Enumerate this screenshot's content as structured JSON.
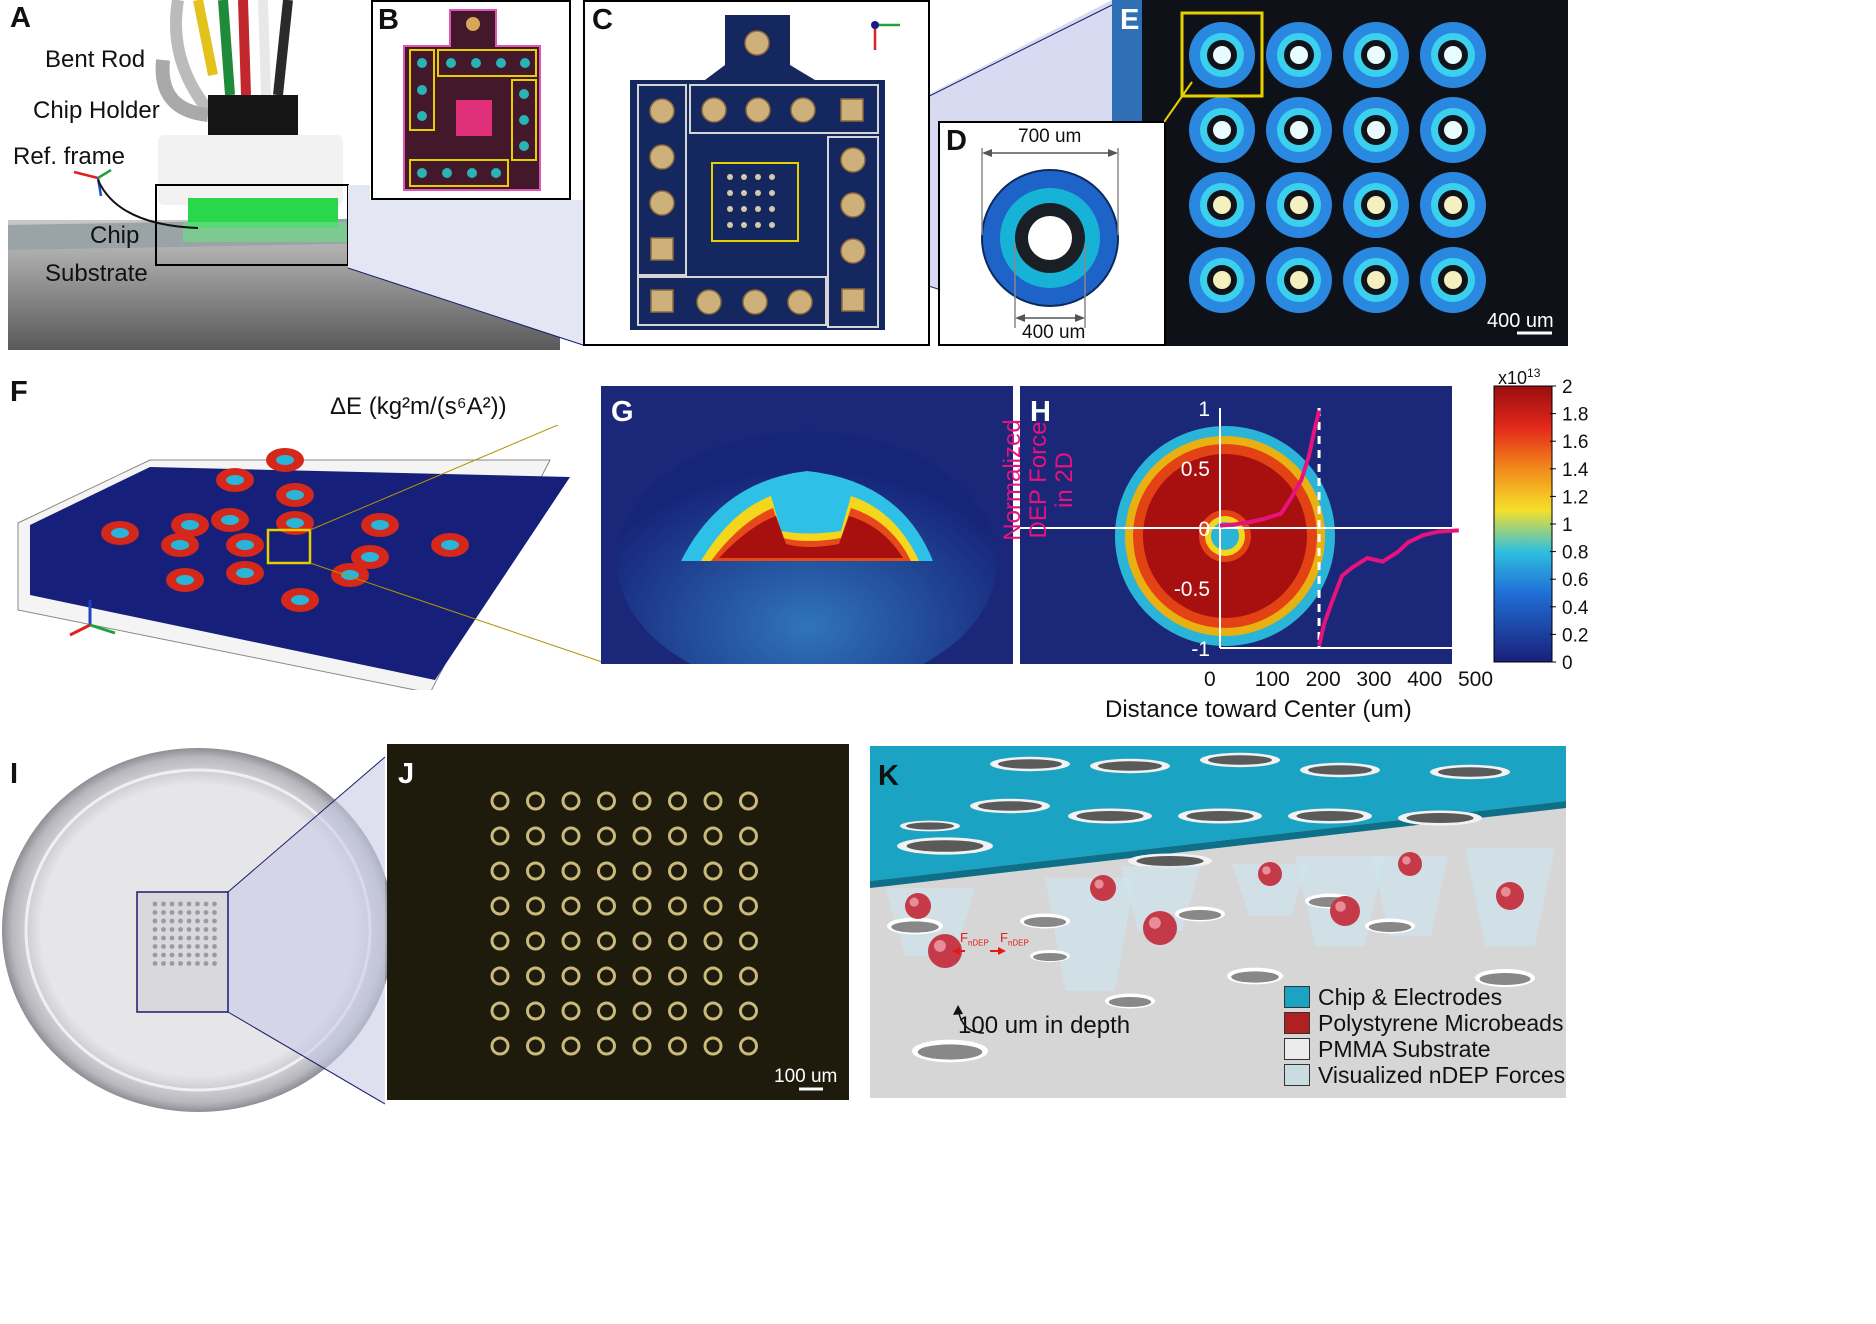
{
  "panels": {
    "A": {
      "label": "A",
      "annotations": [
        "Bent Rod",
        "Chip Holder",
        "Ref. frame",
        "Chip",
        "Substrate"
      ]
    },
    "B": {
      "label": "B"
    },
    "C": {
      "label": "C"
    },
    "D": {
      "label": "D",
      "dim_outer": "700 um",
      "dim_inner": "400 um"
    },
    "E": {
      "label": "E",
      "scalebar": "400 um"
    },
    "F": {
      "label": "F",
      "quantity": "ΔE (kg²m/(s⁶A²))"
    },
    "G": {
      "label": "G"
    },
    "H": {
      "label": "H",
      "ylabel_line1": "Normalized",
      "ylabel_line2": "DEP Force",
      "ylabel_line3": "in 2D",
      "xlabel": "Distance toward Center (um)",
      "y_ticks": [
        "1",
        "0.5",
        "0",
        "-0.5",
        "-1"
      ],
      "x_ticks": [
        "0",
        "100",
        "200",
        "300",
        "400",
        "500"
      ]
    },
    "I": {
      "label": "I"
    },
    "J": {
      "label": "J",
      "scalebar": "100 um"
    },
    "K": {
      "label": "K",
      "depth_note": "100 um in depth",
      "force_label_main": "F",
      "force_label_sub": "nDEP",
      "legend": [
        {
          "label": "Chip & Electrodes",
          "color": "#1aa3c2"
        },
        {
          "label": "Polystyrene Microbeads",
          "color": "#b02020"
        },
        {
          "label": "PMMA Substrate",
          "color": "#ececec"
        },
        {
          "label": "Visualized nDEP Forces",
          "color": "#c9dce2"
        }
      ]
    }
  },
  "colorbar": {
    "exponent": "x10",
    "exponent_power": "13",
    "ticks": [
      "2",
      "1.8",
      "1.6",
      "1.4",
      "1.2",
      "1",
      "0.8",
      "0.6",
      "0.4",
      "0.2",
      "0"
    ]
  },
  "chart_data": {
    "type": "line",
    "xlabel": "Distance toward Center (um)",
    "ylabel": "Normalized DEP Force in 2D",
    "xlim": [
      0,
      500
    ],
    "ylim": [
      -1,
      1
    ],
    "series": [
      {
        "x": [
          0,
          30,
          60,
          90,
          120,
          140,
          160,
          175,
          185,
          195
        ],
        "y": [
          0.02,
          0.03,
          0.05,
          0.08,
          0.12,
          0.25,
          0.4,
          0.6,
          0.8,
          0.98
        ]
      },
      {
        "x": [
          195,
          205,
          220,
          240,
          260,
          290,
          320,
          350,
          370,
          400,
          430,
          470
        ],
        "y": [
          -0.98,
          -0.8,
          -0.62,
          -0.4,
          -0.33,
          -0.25,
          -0.28,
          -0.2,
          -0.12,
          -0.06,
          -0.03,
          -0.02
        ]
      }
    ],
    "reference_line_x": 195
  }
}
